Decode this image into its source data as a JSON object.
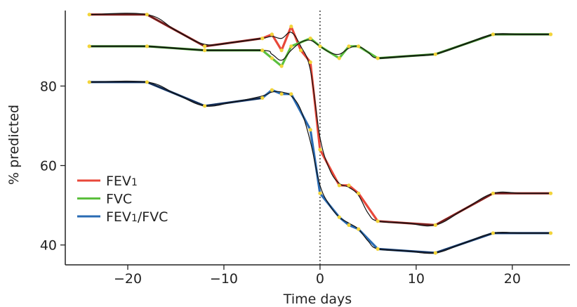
{
  "chart_data": {
    "type": "line",
    "xlabel": "Time days",
    "ylabel": "% predicted",
    "xlim": [
      -26.5,
      26
    ],
    "ylim": [
      35,
      99
    ],
    "xticks": [
      {
        "value": -20,
        "label": "−20"
      },
      {
        "value": -10,
        "label": "−10"
      },
      {
        "value": 0,
        "label": "0"
      },
      {
        "value": 10,
        "label": "10"
      },
      {
        "value": 20,
        "label": "20"
      }
    ],
    "yticks": [
      {
        "value": 40,
        "label": "40"
      },
      {
        "value": 60,
        "label": "60"
      },
      {
        "value": 80,
        "label": "80"
      }
    ],
    "reference_line_x": 0,
    "legend_position": "bottom-left",
    "point_color": "#f2d43a",
    "fit_color": "#111111",
    "series": [
      {
        "name": "FEV1",
        "legend_main": "FEV",
        "legend_sub": "1",
        "color": "#e8483a",
        "dark_color": "#6b1d1d",
        "x": [
          -24,
          -18,
          -12,
          -6,
          -5,
          -4,
          -3,
          -2,
          -1,
          0,
          2,
          3,
          4,
          6,
          12,
          18,
          24
        ],
        "y": [
          98,
          98,
          90,
          92,
          93,
          89,
          95,
          89,
          86,
          64,
          55,
          55,
          53,
          46,
          45,
          53,
          53
        ],
        "fit_x": [
          -24,
          -18,
          -15,
          -12,
          -9,
          -6,
          -5,
          -4,
          -3,
          -2,
          -1,
          0,
          1,
          2,
          3,
          4,
          5,
          6,
          9,
          12,
          15,
          18,
          21,
          24
        ],
        "fit_y": [
          98,
          98,
          94,
          90.5,
          91,
          92,
          92.5,
          92,
          93.5,
          90,
          84,
          67,
          59,
          55.5,
          54.5,
          52.5,
          48,
          46,
          45.5,
          45,
          49,
          53,
          53,
          53
        ]
      },
      {
        "name": "FVC",
        "legend_main": "FVC",
        "legend_sub": "",
        "color": "#5bbf3d",
        "dark_color": "#1f4d14",
        "x": [
          -24,
          -18,
          -12,
          -6,
          -5,
          -4,
          -3,
          -1,
          0,
          2,
          3,
          4,
          6,
          12,
          18,
          24
        ],
        "y": [
          90,
          90,
          89,
          89,
          87,
          85,
          90,
          92,
          90,
          87,
          90,
          90,
          87,
          88,
          93,
          93
        ],
        "fit_x": [
          -24,
          -18,
          -12,
          -6,
          -5,
          -4,
          -3,
          -2,
          -1,
          0,
          1,
          2,
          3,
          4,
          5,
          6,
          9,
          12,
          15,
          18,
          21,
          24
        ],
        "fit_y": [
          90,
          90,
          89,
          89,
          88,
          86.5,
          89,
          91,
          91.5,
          90,
          88.5,
          88,
          89.5,
          90,
          88.5,
          87,
          87.5,
          88,
          90.5,
          93,
          93,
          93
        ]
      },
      {
        "name": "FEV1/FVC",
        "legend_main": "FEV",
        "legend_sub": "1",
        "legend_tail": "/FVC",
        "legend_tail_sub": "",
        "color": "#2a6bb3",
        "dark_color": "#14294d",
        "x": [
          -24,
          -18,
          -12,
          -6,
          -5,
          -4,
          -3,
          -1,
          0,
          2,
          3,
          4,
          6,
          12,
          18,
          24
        ],
        "y": [
          81,
          81,
          75,
          77,
          79,
          78,
          78,
          69,
          53,
          47,
          45,
          44,
          39,
          38,
          43,
          43
        ],
        "fit_x": [
          -24,
          -18,
          -15,
          -12,
          -9,
          -6,
          -5,
          -4,
          -3,
          -2,
          -1,
          0,
          1,
          2,
          3,
          4,
          5,
          6,
          9,
          12,
          15,
          18,
          21,
          24
        ],
        "fit_y": [
          81,
          81,
          78,
          75,
          76,
          77.5,
          78.5,
          78.5,
          77.5,
          74,
          66,
          55,
          50,
          47,
          45.5,
          44,
          41,
          39,
          38.5,
          38,
          40.5,
          43,
          43,
          43
        ]
      }
    ]
  }
}
